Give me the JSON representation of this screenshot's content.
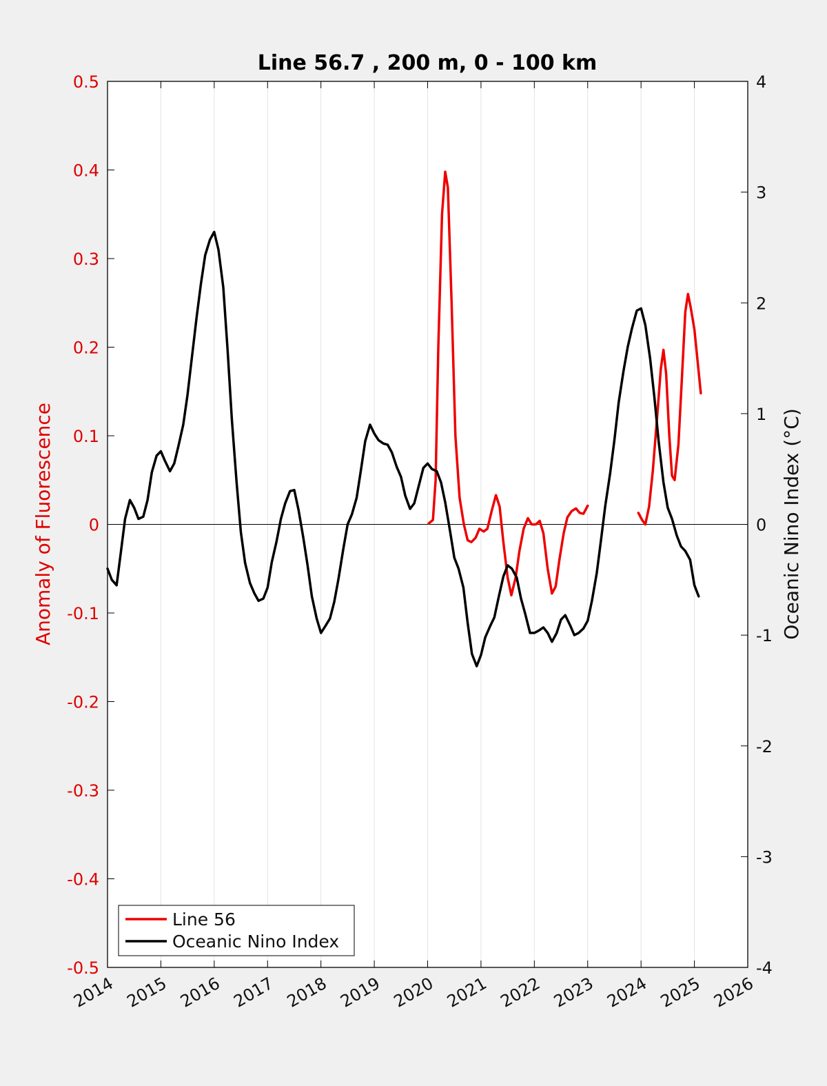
{
  "chart_data": {
    "type": "line",
    "title": "Line 56.7 , 200 m, 0 - 100 km",
    "xlabel": "",
    "ylabel_left": "Anomaly of Fluorescence",
    "ylabel_right": "Oceanic Nino Index (°C)",
    "xlim": [
      2014,
      2026
    ],
    "ylim_left": [
      -0.5,
      0.5
    ],
    "ylim_right": [
      -4,
      4
    ],
    "x_ticks": [
      "2014",
      "2015",
      "2016",
      "2017",
      "2018",
      "2019",
      "2020",
      "2021",
      "2022",
      "2023",
      "2024",
      "2025",
      "2026"
    ],
    "y_ticks_left": [
      "0.5",
      "0.4",
      "0.3",
      "0.2",
      "0.1",
      "0",
      "-0.1",
      "-0.2",
      "-0.3",
      "-0.4",
      "-0.5"
    ],
    "y_ticks_right": [
      "4",
      "3",
      "2",
      "1",
      "0",
      "-1",
      "-2",
      "-3",
      "-4"
    ],
    "grid": "vertical",
    "legend_position": "bottom-left",
    "colors": {
      "line56": "#ee0000",
      "oni": "#000000",
      "background": "#f0f0f0",
      "plot": "#ffffff"
    },
    "series": [
      {
        "name": "Line 56",
        "axis": "left",
        "segments": [
          [
            [
              2020.02,
              0.001
            ],
            [
              2020.1,
              0.005
            ],
            [
              2020.15,
              0.05
            ],
            [
              2020.2,
              0.2
            ],
            [
              2020.27,
              0.35
            ],
            [
              2020.33,
              0.398
            ],
            [
              2020.38,
              0.38
            ],
            [
              2020.45,
              0.25
            ],
            [
              2020.52,
              0.1
            ],
            [
              2020.6,
              0.03
            ],
            [
              2020.68,
              0.0
            ],
            [
              2020.75,
              -0.018
            ],
            [
              2020.82,
              -0.02
            ],
            [
              2020.9,
              -0.015
            ],
            [
              2020.97,
              -0.005
            ],
            [
              2021.05,
              -0.008
            ],
            [
              2021.12,
              -0.005
            ],
            [
              2021.2,
              0.015
            ],
            [
              2021.28,
              0.033
            ],
            [
              2021.35,
              0.02
            ],
            [
              2021.42,
              -0.02
            ],
            [
              2021.5,
              -0.06
            ],
            [
              2021.57,
              -0.08
            ],
            [
              2021.65,
              -0.06
            ],
            [
              2021.72,
              -0.03
            ],
            [
              2021.8,
              -0.005
            ],
            [
              2021.88,
              0.007
            ],
            [
              2021.95,
              0.0
            ],
            [
              2022.03,
              0.0
            ],
            [
              2022.1,
              0.004
            ],
            [
              2022.17,
              -0.01
            ],
            [
              2022.25,
              -0.05
            ],
            [
              2022.33,
              -0.078
            ],
            [
              2022.4,
              -0.07
            ],
            [
              2022.47,
              -0.04
            ],
            [
              2022.55,
              -0.01
            ],
            [
              2022.62,
              0.008
            ],
            [
              2022.7,
              0.015
            ],
            [
              2022.78,
              0.018
            ],
            [
              2022.85,
              0.013
            ],
            [
              2022.92,
              0.012
            ],
            [
              2023.0,
              0.021
            ]
          ],
          [
            [
              2023.95,
              0.013
            ],
            [
              2024.02,
              0.005
            ],
            [
              2024.08,
              0.0
            ],
            [
              2024.15,
              0.02
            ],
            [
              2024.22,
              0.06
            ],
            [
              2024.3,
              0.12
            ],
            [
              2024.37,
              0.175
            ],
            [
              2024.42,
              0.197
            ],
            [
              2024.47,
              0.17
            ],
            [
              2024.53,
              0.1
            ],
            [
              2024.58,
              0.055
            ],
            [
              2024.63,
              0.05
            ],
            [
              2024.7,
              0.09
            ],
            [
              2024.77,
              0.17
            ],
            [
              2024.83,
              0.24
            ],
            [
              2024.88,
              0.26
            ],
            [
              2024.93,
              0.245
            ],
            [
              2025.0,
              0.22
            ],
            [
              2025.05,
              0.19
            ],
            [
              2025.12,
              0.148
            ]
          ]
        ]
      },
      {
        "name": "Oceanic Nino Index",
        "axis": "right",
        "points": [
          [
            2014.0,
            -0.4
          ],
          [
            2014.08,
            -0.5
          ],
          [
            2014.17,
            -0.55
          ],
          [
            2014.25,
            -0.25
          ],
          [
            2014.33,
            0.05
          ],
          [
            2014.42,
            0.22
          ],
          [
            2014.5,
            0.15
          ],
          [
            2014.58,
            0.05
          ],
          [
            2014.67,
            0.07
          ],
          [
            2014.75,
            0.22
          ],
          [
            2014.83,
            0.47
          ],
          [
            2014.92,
            0.62
          ],
          [
            2015.0,
            0.66
          ],
          [
            2015.08,
            0.57
          ],
          [
            2015.17,
            0.48
          ],
          [
            2015.25,
            0.55
          ],
          [
            2015.33,
            0.71
          ],
          [
            2015.42,
            0.9
          ],
          [
            2015.5,
            1.17
          ],
          [
            2015.58,
            1.5
          ],
          [
            2015.67,
            1.87
          ],
          [
            2015.75,
            2.17
          ],
          [
            2015.83,
            2.43
          ],
          [
            2015.92,
            2.57
          ],
          [
            2016.0,
            2.64
          ],
          [
            2016.08,
            2.48
          ],
          [
            2016.17,
            2.14
          ],
          [
            2016.25,
            1.58
          ],
          [
            2016.33,
            0.95
          ],
          [
            2016.42,
            0.38
          ],
          [
            2016.5,
            -0.07
          ],
          [
            2016.58,
            -0.35
          ],
          [
            2016.67,
            -0.53
          ],
          [
            2016.75,
            -0.62
          ],
          [
            2016.83,
            -0.69
          ],
          [
            2016.92,
            -0.67
          ],
          [
            2017.0,
            -0.57
          ],
          [
            2017.08,
            -0.34
          ],
          [
            2017.17,
            -0.15
          ],
          [
            2017.25,
            0.05
          ],
          [
            2017.33,
            0.19
          ],
          [
            2017.42,
            0.3
          ],
          [
            2017.5,
            0.31
          ],
          [
            2017.58,
            0.13
          ],
          [
            2017.67,
            -0.12
          ],
          [
            2017.75,
            -0.37
          ],
          [
            2017.83,
            -0.65
          ],
          [
            2017.92,
            -0.85
          ],
          [
            2018.0,
            -0.98
          ],
          [
            2018.08,
            -0.92
          ],
          [
            2018.17,
            -0.85
          ],
          [
            2018.25,
            -0.7
          ],
          [
            2018.33,
            -0.49
          ],
          [
            2018.42,
            -0.22
          ],
          [
            2018.5,
            0.0
          ],
          [
            2018.58,
            0.09
          ],
          [
            2018.67,
            0.24
          ],
          [
            2018.75,
            0.49
          ],
          [
            2018.83,
            0.75
          ],
          [
            2018.92,
            0.9
          ],
          [
            2019.0,
            0.82
          ],
          [
            2019.08,
            0.76
          ],
          [
            2019.17,
            0.73
          ],
          [
            2019.25,
            0.72
          ],
          [
            2019.33,
            0.65
          ],
          [
            2019.42,
            0.52
          ],
          [
            2019.5,
            0.43
          ],
          [
            2019.58,
            0.26
          ],
          [
            2019.67,
            0.14
          ],
          [
            2019.75,
            0.19
          ],
          [
            2019.83,
            0.34
          ],
          [
            2019.92,
            0.51
          ],
          [
            2020.0,
            0.55
          ],
          [
            2020.08,
            0.5
          ],
          [
            2020.17,
            0.48
          ],
          [
            2020.25,
            0.38
          ],
          [
            2020.33,
            0.2
          ],
          [
            2020.42,
            -0.06
          ],
          [
            2020.5,
            -0.3
          ],
          [
            2020.58,
            -0.4
          ],
          [
            2020.67,
            -0.57
          ],
          [
            2020.75,
            -0.89
          ],
          [
            2020.83,
            -1.17
          ],
          [
            2020.92,
            -1.28
          ],
          [
            2021.0,
            -1.18
          ],
          [
            2021.08,
            -1.02
          ],
          [
            2021.17,
            -0.92
          ],
          [
            2021.25,
            -0.84
          ],
          [
            2021.33,
            -0.66
          ],
          [
            2021.42,
            -0.47
          ],
          [
            2021.5,
            -0.37
          ],
          [
            2021.58,
            -0.4
          ],
          [
            2021.67,
            -0.48
          ],
          [
            2021.75,
            -0.67
          ],
          [
            2021.83,
            -0.81
          ],
          [
            2021.92,
            -0.98
          ],
          [
            2022.0,
            -0.98
          ],
          [
            2022.08,
            -0.96
          ],
          [
            2022.17,
            -0.93
          ],
          [
            2022.25,
            -0.98
          ],
          [
            2022.33,
            -1.06
          ],
          [
            2022.42,
            -0.98
          ],
          [
            2022.5,
            -0.86
          ],
          [
            2022.58,
            -0.82
          ],
          [
            2022.67,
            -0.91
          ],
          [
            2022.75,
            -1.0
          ],
          [
            2022.83,
            -0.98
          ],
          [
            2022.92,
            -0.94
          ],
          [
            2023.0,
            -0.87
          ],
          [
            2023.08,
            -0.69
          ],
          [
            2023.17,
            -0.44
          ],
          [
            2023.25,
            -0.14
          ],
          [
            2023.33,
            0.17
          ],
          [
            2023.42,
            0.46
          ],
          [
            2023.5,
            0.76
          ],
          [
            2023.58,
            1.1
          ],
          [
            2023.67,
            1.38
          ],
          [
            2023.75,
            1.6
          ],
          [
            2023.83,
            1.77
          ],
          [
            2023.92,
            1.93
          ],
          [
            2024.0,
            1.95
          ],
          [
            2024.08,
            1.8
          ],
          [
            2024.17,
            1.5
          ],
          [
            2024.25,
            1.15
          ],
          [
            2024.33,
            0.75
          ],
          [
            2024.42,
            0.38
          ],
          [
            2024.5,
            0.15
          ],
          [
            2024.58,
            0.05
          ],
          [
            2024.67,
            -0.1
          ],
          [
            2024.75,
            -0.2
          ],
          [
            2024.83,
            -0.24
          ],
          [
            2024.92,
            -0.32
          ],
          [
            2025.0,
            -0.55
          ],
          [
            2025.08,
            -0.65
          ]
        ]
      }
    ]
  }
}
